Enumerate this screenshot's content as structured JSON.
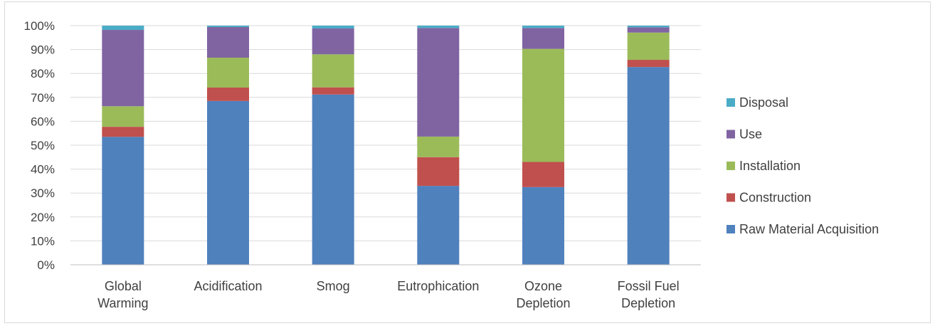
{
  "chart_data": {
    "type": "bar",
    "stacked": "percent",
    "categories": [
      [
        "Global",
        "Warming"
      ],
      [
        "Acidification"
      ],
      [
        "Smog"
      ],
      [
        "Eutrophication"
      ],
      [
        "Ozone",
        "Depletion"
      ],
      [
        "Fossil Fuel",
        "Depletion"
      ]
    ],
    "series": [
      {
        "name": "Raw Material Acquisition",
        "color": "#4f81bd",
        "values": [
          53.5,
          68.5,
          71.2,
          33.0,
          32.5,
          82.7
        ]
      },
      {
        "name": "Construction",
        "color": "#c0504d",
        "values": [
          4.2,
          5.6,
          3.0,
          12.0,
          10.5,
          3.0
        ]
      },
      {
        "name": "Installation",
        "color": "#9bbb59",
        "values": [
          8.6,
          12.5,
          13.8,
          8.6,
          47.3,
          11.4
        ]
      },
      {
        "name": "Use",
        "color": "#8064a2",
        "values": [
          31.9,
          12.8,
          10.8,
          45.4,
          8.7,
          2.2
        ]
      },
      {
        "name": "Disposal",
        "color": "#4bacc6",
        "values": [
          1.8,
          0.6,
          1.2,
          1.0,
          1.0,
          0.7
        ]
      }
    ],
    "yticks": [
      "0%",
      "10%",
      "20%",
      "30%",
      "40%",
      "50%",
      "60%",
      "70%",
      "80%",
      "90%",
      "100%"
    ],
    "ylim": [
      0,
      100
    ],
    "grid": true,
    "legend_position": "right"
  }
}
